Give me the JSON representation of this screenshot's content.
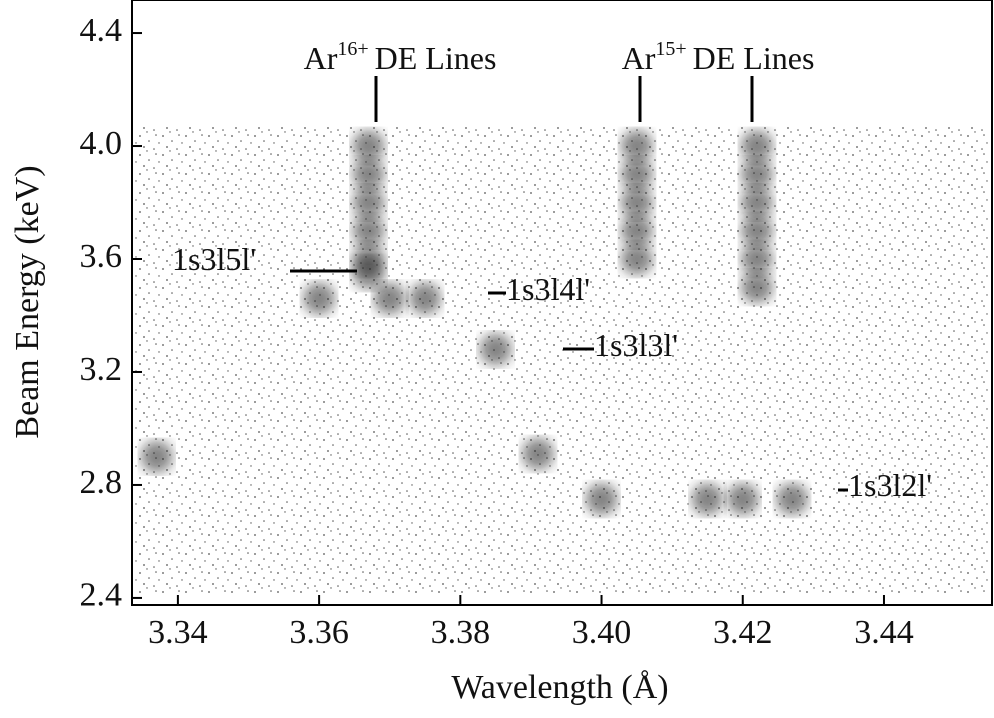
{
  "chart_data": {
    "type": "scatter",
    "x_label": "Wavelength (Å)",
    "y_label": "Beam Energy (keV)",
    "xlim": [
      3.3335,
      3.4553
    ],
    "ylim": [
      2.375,
      4.517
    ],
    "xticks": [
      3.34,
      3.36,
      3.38,
      {
        "value": 3.4,
        "label": "3.40"
      },
      3.42,
      3.44
    ],
    "yticks": [
      2.4,
      2.8,
      3.2,
      3.6,
      {
        "value": 4.0,
        "label": "4.0"
      },
      4.4
    ],
    "color": "#222",
    "x": [
      3.367,
      3.367,
      3.367,
      3.367,
      3.367,
      3.367,
      3.405,
      3.405,
      3.405,
      3.405,
      3.405,
      3.422,
      3.422,
      3.422,
      3.422,
      3.422,
      3.422,
      3.36,
      3.37,
      3.375,
      3.385,
      3.4,
      3.415,
      3.42,
      3.427,
      3.337,
      3.391
    ],
    "y": [
      4.0,
      3.9,
      3.8,
      3.7,
      3.6,
      3.55,
      4.0,
      3.9,
      3.8,
      3.7,
      3.6,
      4.0,
      3.9,
      3.8,
      3.7,
      3.6,
      3.5,
      3.46,
      3.46,
      3.46,
      3.28,
      2.75,
      2.75,
      2.75,
      2.75,
      2.9,
      2.91
    ],
    "annotations": [
      {
        "text": "Ar",
        "sup": "16+",
        "rest": "DE Lines"
      },
      {
        "text": "Ar",
        "sup": "15+",
        "rest": "DE Lines"
      },
      {
        "text": "1s3l5l'"
      },
      {
        "text": "1s3l4l'"
      },
      {
        "text": "1s3l3l'"
      },
      {
        "text": "1s3l2l'"
      }
    ]
  }
}
